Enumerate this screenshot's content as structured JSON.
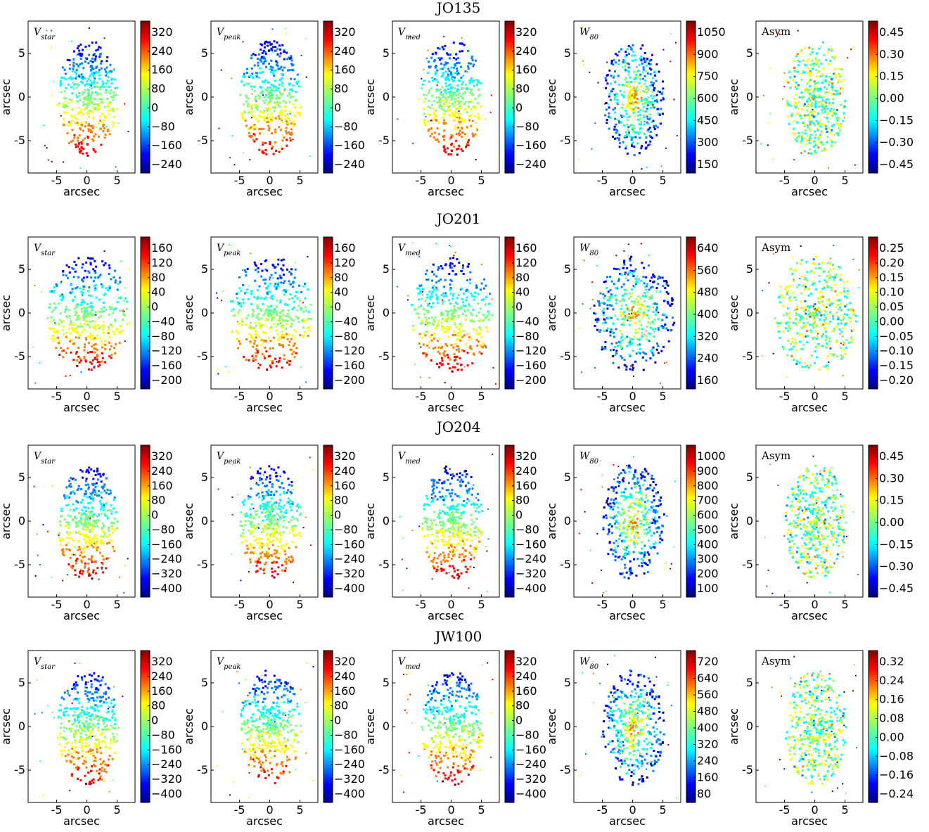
{
  "figure": {
    "rows": [
      {
        "title": "JO135",
        "x_ticks": [
          -5,
          0,
          5
        ],
        "y_ticks": [
          5,
          0,
          -5
        ],
        "axis_label": "arcsec",
        "panels": [
          {
            "label": "V",
            "sub": "star",
            "cbar_ticks": [
              "320",
              "240",
              "160",
              "80",
              "0",
              "−80",
              "−160",
              "−240"
            ]
          },
          {
            "label": "V",
            "sub": "peak",
            "cbar_ticks": [
              "320",
              "240",
              "160",
              "80",
              "0",
              "−80",
              "−160",
              "−240"
            ]
          },
          {
            "label": "V",
            "sub": "med",
            "cbar_ticks": [
              "320",
              "240",
              "160",
              "80",
              "0",
              "−80",
              "−160",
              "−240"
            ]
          },
          {
            "label": "W",
            "sub": "80",
            "cbar_ticks": [
              "1050",
              "900",
              "750",
              "600",
              "450",
              "300",
              "150"
            ]
          },
          {
            "label": "Asym",
            "sub": "",
            "cbar_ticks": [
              "0.45",
              "0.30",
              "0.15",
              "0.00",
              "−0.15",
              "−0.30",
              "−0.45"
            ]
          }
        ]
      },
      {
        "title": "JO201",
        "x_ticks": [
          -5,
          0,
          5
        ],
        "y_ticks": [
          5,
          0,
          -5
        ],
        "axis_label": "arcsec",
        "panels": [
          {
            "label": "V",
            "sub": "star",
            "cbar_ticks": [
              "160",
              "120",
              "80",
              "40",
              "0",
              "−40",
              "−80",
              "−120",
              "−160",
              "−200"
            ]
          },
          {
            "label": "V",
            "sub": "peak",
            "cbar_ticks": [
              "160",
              "120",
              "80",
              "40",
              "0",
              "−40",
              "−80",
              "−120",
              "−160",
              "−200"
            ]
          },
          {
            "label": "V",
            "sub": "med",
            "cbar_ticks": [
              "160",
              "120",
              "80",
              "40",
              "0",
              "−40",
              "−80",
              "−120",
              "−160",
              "−200"
            ]
          },
          {
            "label": "W",
            "sub": "80",
            "cbar_ticks": [
              "640",
              "560",
              "480",
              "400",
              "320",
              "240",
              "160"
            ]
          },
          {
            "label": "Asym",
            "sub": "",
            "cbar_ticks": [
              "0.25",
              "0.20",
              "0.15",
              "0.10",
              "0.05",
              "0.00",
              "−0.05",
              "−0.10",
              "−0.15",
              "−0.20"
            ]
          }
        ]
      },
      {
        "title": "JO204",
        "x_ticks": [
          -5,
          0,
          5
        ],
        "y_ticks": [
          5,
          0,
          -5
        ],
        "axis_label": "arcsec",
        "panels": [
          {
            "label": "V",
            "sub": "star",
            "cbar_ticks": [
              "320",
              "240",
              "160",
              "80",
              "0",
              "−80",
              "−160",
              "−240",
              "−320",
              "−400"
            ]
          },
          {
            "label": "V",
            "sub": "peak",
            "cbar_ticks": [
              "320",
              "240",
              "160",
              "80",
              "0",
              "−80",
              "−160",
              "−240",
              "−320",
              "−400"
            ]
          },
          {
            "label": "V",
            "sub": "med",
            "cbar_ticks": [
              "320",
              "240",
              "160",
              "80",
              "0",
              "−80",
              "−160",
              "−240",
              "−320",
              "−400"
            ]
          },
          {
            "label": "W",
            "sub": "80",
            "cbar_ticks": [
              "1000",
              "900",
              "800",
              "700",
              "600",
              "500",
              "400",
              "300",
              "200",
              "100"
            ]
          },
          {
            "label": "Asym",
            "sub": "",
            "cbar_ticks": [
              "0.45",
              "0.30",
              "0.15",
              "0.00",
              "−0.15",
              "−0.30",
              "−0.45"
            ]
          }
        ]
      },
      {
        "title": "JW100",
        "x_ticks": [
          -5,
          0,
          5
        ],
        "y_ticks": [
          5,
          0,
          -5
        ],
        "axis_label": "arcsec",
        "panels": [
          {
            "label": "V",
            "sub": "star",
            "cbar_ticks": [
              "320",
              "240",
              "160",
              "80",
              "0",
              "−80",
              "−160",
              "−240",
              "−320",
              "−400"
            ]
          },
          {
            "label": "V",
            "sub": "peak",
            "cbar_ticks": [
              "320",
              "240",
              "160",
              "80",
              "0",
              "−80",
              "−160",
              "−240",
              "−320",
              "−400"
            ]
          },
          {
            "label": "V",
            "sub": "med",
            "cbar_ticks": [
              "320",
              "240",
              "160",
              "80",
              "0",
              "−80",
              "−160",
              "−240",
              "−320",
              "−400"
            ]
          },
          {
            "label": "W",
            "sub": "80",
            "cbar_ticks": [
              "720",
              "640",
              "560",
              "480",
              "400",
              "320",
              "240",
              "160",
              "80"
            ]
          },
          {
            "label": "Asym",
            "sub": "",
            "cbar_ticks": [
              "0.32",
              "0.24",
              "0.16",
              "0.08",
              "0.00",
              "−0.08",
              "−0.16",
              "−0.24"
            ]
          }
        ]
      }
    ],
    "colormap": [
      "#00007f",
      "#0000ff",
      "#007fff",
      "#00ffff",
      "#7fff7f",
      "#ffff00",
      "#ff7f00",
      "#ff0000",
      "#7f0000"
    ]
  },
  "chart_data": {
    "type": "heatmap",
    "description_rows": [
      "JO135",
      "JO201",
      "JO204",
      "JW100"
    ],
    "panel_quantities": [
      "V_star",
      "V_peak",
      "V_med",
      "W_80",
      "Asym"
    ],
    "axis_label": "arcsec",
    "x_ticks": [
      -5,
      0,
      5
    ],
    "y_ticks": [
      -5,
      0,
      5
    ]
  }
}
